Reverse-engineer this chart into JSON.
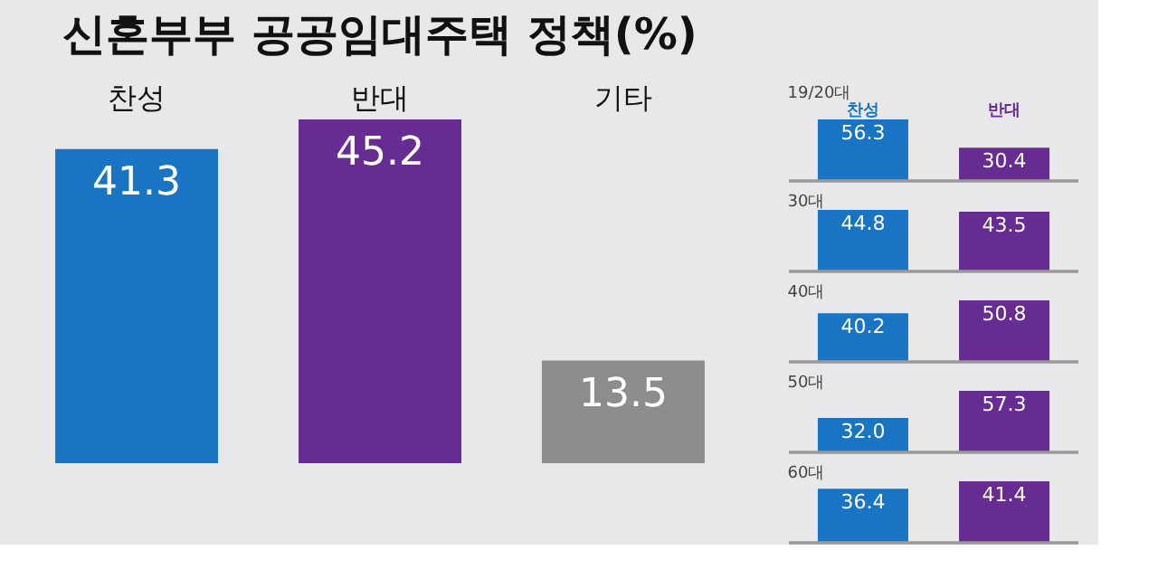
{
  "chart_data": [
    {
      "type": "bar",
      "title": "신혼부부 공공임대주택 정책(%)",
      "categories": [
        "찬성",
        "반대",
        "기타"
      ],
      "values": [
        41.3,
        45.2,
        13.5
      ],
      "colors": [
        "#1a74c4",
        "#672c91",
        "#8d8d8f"
      ],
      "data_labels": true,
      "grid": false,
      "legend": false
    },
    {
      "type": "bar",
      "title": "19/20대",
      "categories": [
        "찬성",
        "반대"
      ],
      "values": [
        56.3,
        30.4
      ],
      "colors": [
        "#1a74c4",
        "#672c91"
      ],
      "data_labels": true,
      "grid": false,
      "legend": false
    },
    {
      "type": "bar",
      "title": "30대",
      "categories": [
        null,
        null
      ],
      "values": [
        44.8,
        43.5
      ],
      "colors": [
        "#1a74c4",
        "#672c91"
      ],
      "data_labels": true,
      "grid": false,
      "legend": false
    },
    {
      "type": "bar",
      "title": "40대",
      "categories": [
        null,
        null
      ],
      "values": [
        40.2,
        50.8
      ],
      "colors": [
        "#1a74c4",
        "#672c91"
      ],
      "data_labels": true,
      "grid": false,
      "legend": false
    },
    {
      "type": "bar",
      "title": "50대",
      "categories": [
        null,
        null
      ],
      "values": [
        32.0,
        57.3
      ],
      "value_labels": [
        "32.0",
        "57.3"
      ],
      "colors": [
        "#1a74c4",
        "#672c91"
      ],
      "grid": false,
      "legend": false
    },
    {
      "type": "bar",
      "title": "60대",
      "categories": [
        null,
        null
      ],
      "values": [
        36.4,
        41.4
      ],
      "colors": [
        "#1a74c4",
        "#672c91"
      ],
      "data_labels": true,
      "grid": false,
      "legend": false
    }
  ]
}
